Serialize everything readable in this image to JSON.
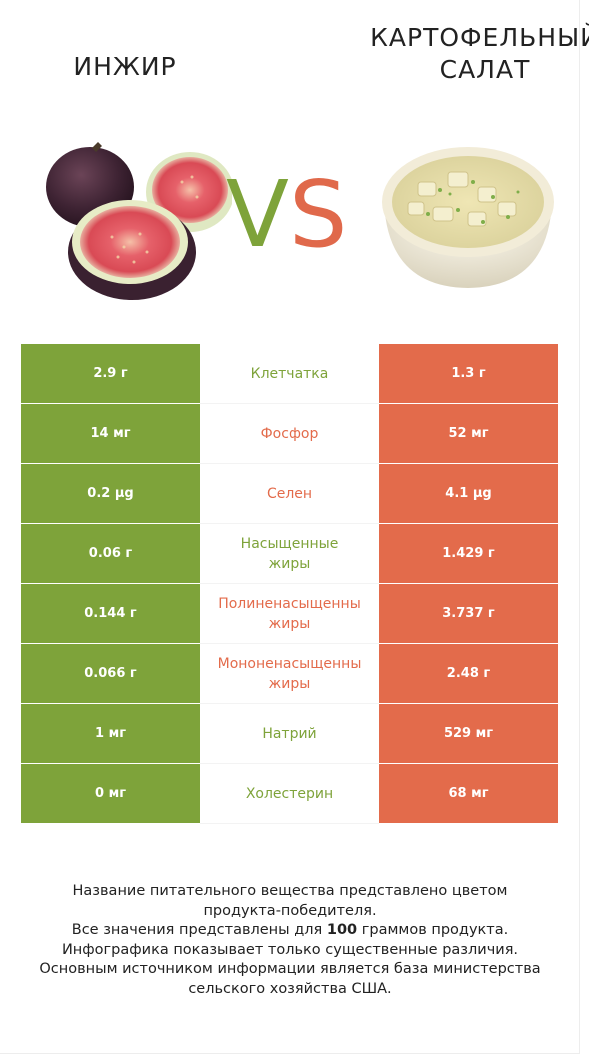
{
  "left_title": "ИНЖИР",
  "right_title_line1": "КАРТОФЕЛЬНЫЙ",
  "right_title_line2": "САЛАТ",
  "vs_v": "V",
  "vs_s": "S",
  "colors": {
    "left": "#7ea33a",
    "right": "#e36b4b"
  },
  "rows": [
    {
      "left": "2.9 г",
      "label": "Клетчатка",
      "right": "1.3 г",
      "winner": "left"
    },
    {
      "left": "14 мг",
      "label": "Фосфор",
      "right": "52 мг",
      "winner": "right"
    },
    {
      "left": "0.2 µg",
      "label": "Селен",
      "right": "4.1 µg",
      "winner": "right"
    },
    {
      "left": "0.06 г",
      "label": "Насыщенные жиры",
      "right": "1.429 г",
      "winner": "left"
    },
    {
      "left": "0.144 г",
      "label": "Полиненасыщенные жиры",
      "right": "3.737 г",
      "winner": "right"
    },
    {
      "left": "0.066 г",
      "label": "Мононенасыщенные жиры",
      "right": "2.48 г",
      "winner": "right"
    },
    {
      "left": "1 мг",
      "label": "Натрий",
      "right": "529 мг",
      "winner": "left"
    },
    {
      "left": "0 мг",
      "label": "Холестерин",
      "right": "68 мг",
      "winner": "left"
    }
  ],
  "labels_split": {
    "r3a": "Насыщенные",
    "r3b": "жиры",
    "r4a": "Полиненасыщенны",
    "r4b": "жиры",
    "r5a": "Мононенасыщенны",
    "r5b": "жиры"
  },
  "footer": {
    "line1": "Название питательного вещества представлено цветом",
    "line2": "продукта-победителя.",
    "line3a": "Все значения представлены для ",
    "line3b": "100",
    "line3c": " граммов продукта.",
    "line4": "Инфографика показывает только существенные различия.",
    "line5": "Основным источником информации является база министерства",
    "line6": "сельского хозяйства США."
  }
}
